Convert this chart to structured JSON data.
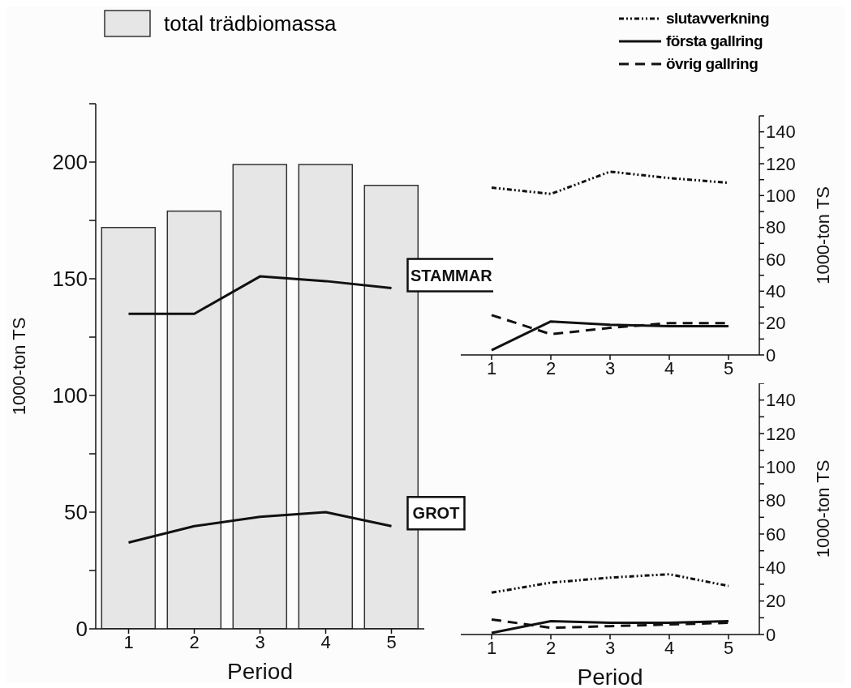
{
  "chart_data": [
    {
      "type": "bar",
      "xlabel": "Period",
      "ylabel": "1000-ton TS",
      "categories": [
        "1",
        "2",
        "3",
        "4",
        "5"
      ],
      "series": [
        {
          "name": "total trädbiomassa",
          "type": "bar",
          "color": "#e6e6e6",
          "values": [
            172,
            179,
            199,
            199,
            190
          ]
        },
        {
          "type": "line",
          "color": "#111111",
          "line_style": "solid",
          "values": [
            135,
            135,
            151,
            149,
            146
          ]
        },
        {
          "type": "line",
          "color": "#111111",
          "line_style": "solid",
          "values": [
            37,
            44,
            48,
            50,
            44
          ]
        }
      ],
      "ylim": [
        0,
        225
      ],
      "yticks": [
        0,
        {
          "value": 25,
          "label": null
        },
        50,
        {
          "value": 75,
          "label": null
        },
        100,
        {
          "value": 125,
          "label": null
        },
        150,
        {
          "value": 175,
          "label": null
        },
        200,
        {
          "value": 225,
          "label": null
        }
      ],
      "legend": "top left",
      "annotations": [
        {
          "text": "STAMMAR",
          "x": "5",
          "y": 146
        },
        {
          "text": "GROT",
          "x": "5",
          "y": 44
        }
      ]
    },
    {
      "type": "line",
      "y2label": "1000-ton TS",
      "categories": [
        "1",
        "2",
        "3",
        "4",
        "5"
      ],
      "series": [
        {
          "name": "slutavverkning",
          "color": "#111111",
          "line_style": "dotted",
          "axis": "y2",
          "values": [
            105,
            101,
            115,
            111,
            108
          ]
        },
        {
          "name": "första gallring",
          "color": "#111111",
          "line_style": "solid",
          "axis": "y2",
          "values": [
            3,
            21,
            19,
            18,
            18
          ]
        },
        {
          "name": "övrig gallring",
          "color": "#111111",
          "line_style": "dashed",
          "axis": "y2",
          "values": [
            25,
            13,
            17,
            20,
            20
          ]
        }
      ],
      "y2lim": [
        0,
        150
      ],
      "y2ticks": [
        0,
        {
          "value": 10,
          "label": null
        },
        20,
        {
          "value": 30,
          "label": null
        },
        40,
        {
          "value": 50,
          "label": null
        },
        60,
        {
          "value": 70,
          "label": null
        },
        80,
        {
          "value": 90,
          "label": null
        },
        100,
        {
          "value": 110,
          "label": null
        },
        120,
        {
          "value": 130,
          "label": null
        },
        140,
        {
          "value": 150,
          "label": null
        }
      ],
      "legend": "top right"
    },
    {
      "type": "line",
      "xlabel": "Period",
      "y2label": "1000-ton TS",
      "categories": [
        "1",
        "2",
        "3",
        "4",
        "5"
      ],
      "series": [
        {
          "color": "#111111",
          "line_style": "dotted",
          "axis": "y2",
          "values": [
            25,
            31,
            34,
            36,
            29
          ]
        },
        {
          "color": "#111111",
          "line_style": "solid",
          "axis": "y2",
          "values": [
            1,
            8,
            7,
            7,
            8
          ]
        },
        {
          "color": "#111111",
          "line_style": "dashed",
          "axis": "y2",
          "values": [
            9,
            4,
            5,
            6,
            7
          ]
        }
      ],
      "y2lim": [
        0,
        150
      ],
      "y2ticks": [
        0,
        {
          "value": 10,
          "label": null
        },
        20,
        {
          "value": 30,
          "label": null
        },
        40,
        {
          "value": 50,
          "label": null
        },
        60,
        {
          "value": 70,
          "label": null
        },
        80,
        {
          "value": 90,
          "label": null
        },
        100,
        {
          "value": 110,
          "label": null
        },
        120,
        {
          "value": 130,
          "label": null
        },
        140,
        {
          "value": 150,
          "label": null
        }
      ]
    }
  ]
}
